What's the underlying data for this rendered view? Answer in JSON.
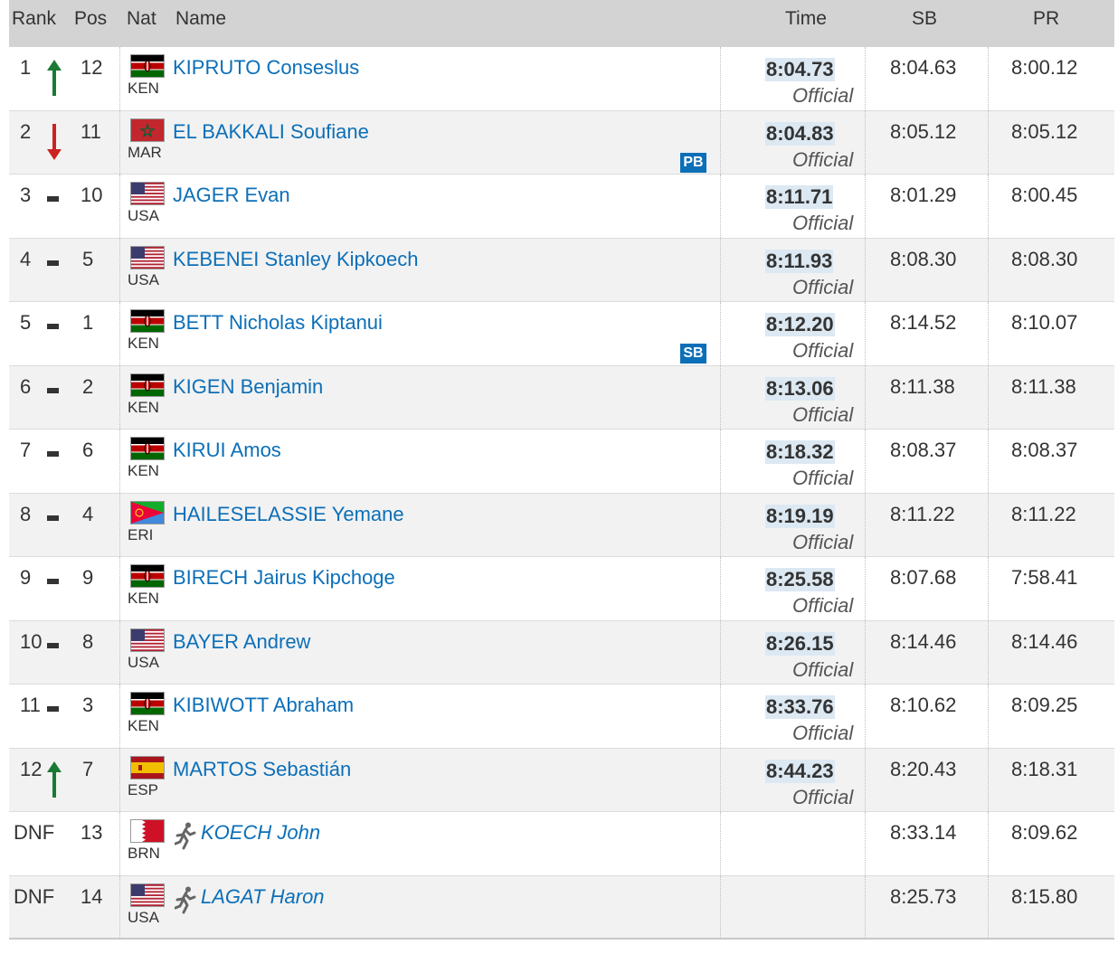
{
  "headers": {
    "rank": "Rank",
    "pos": "Pos",
    "nat": "Nat",
    "name": "Name",
    "time": "Time",
    "sb": "SB",
    "pr": "PR"
  },
  "colors": {
    "link": "#0c6fb8",
    "header_bg": "#d3d3d3",
    "row_alt_bg": "#f2f2f2",
    "time_highlight": "#dce8f2",
    "trend_up": "#1a7a35",
    "trend_down": "#cc2222"
  },
  "rows": [
    {
      "rank": "1",
      "trend": "up",
      "pos": "12",
      "nat": "KEN",
      "flag": "kenya-flag-icon",
      "name": "KIPRUTO Conseslus",
      "badge": "",
      "time": "8:04.73",
      "status": "Official",
      "sb": "8:04.63",
      "pr": "8:00.12"
    },
    {
      "rank": "2",
      "trend": "down",
      "pos": "11",
      "nat": "MAR",
      "flag": "morocco-flag-icon",
      "name": "EL BAKKALI Soufiane",
      "badge": "PB",
      "time": "8:04.83",
      "status": "Official",
      "sb": "8:05.12",
      "pr": "8:05.12"
    },
    {
      "rank": "3",
      "trend": "same",
      "pos": "10",
      "nat": "USA",
      "flag": "usa-flag-icon",
      "name": "JAGER Evan",
      "badge": "",
      "time": "8:11.71",
      "status": "Official",
      "sb": "8:01.29",
      "pr": "8:00.45"
    },
    {
      "rank": "4",
      "trend": "same",
      "pos": "5",
      "nat": "USA",
      "flag": "usa-flag-icon",
      "name": "KEBENEI Stanley Kipkoech",
      "badge": "",
      "time": "8:11.93",
      "status": "Official",
      "sb": "8:08.30",
      "pr": "8:08.30"
    },
    {
      "rank": "5",
      "trend": "same",
      "pos": "1",
      "nat": "KEN",
      "flag": "kenya-flag-icon",
      "name": "BETT Nicholas Kiptanui",
      "badge": "SB",
      "time": "8:12.20",
      "status": "Official",
      "sb": "8:14.52",
      "pr": "8:10.07"
    },
    {
      "rank": "6",
      "trend": "same",
      "pos": "2",
      "nat": "KEN",
      "flag": "kenya-flag-icon",
      "name": "KIGEN Benjamin",
      "badge": "",
      "time": "8:13.06",
      "status": "Official",
      "sb": "8:11.38",
      "pr": "8:11.38"
    },
    {
      "rank": "7",
      "trend": "same",
      "pos": "6",
      "nat": "KEN",
      "flag": "kenya-flag-icon",
      "name": "KIRUI Amos",
      "badge": "",
      "time": "8:18.32",
      "status": "Official",
      "sb": "8:08.37",
      "pr": "8:08.37"
    },
    {
      "rank": "8",
      "trend": "same",
      "pos": "4",
      "nat": "ERI",
      "flag": "eritrea-flag-icon",
      "name": "HAILESELASSIE Yemane",
      "badge": "",
      "time": "8:19.19",
      "status": "Official",
      "sb": "8:11.22",
      "pr": "8:11.22"
    },
    {
      "rank": "9",
      "trend": "same",
      "pos": "9",
      "nat": "KEN",
      "flag": "kenya-flag-icon",
      "name": "BIRECH Jairus Kipchoge",
      "badge": "",
      "time": "8:25.58",
      "status": "Official",
      "sb": "8:07.68",
      "pr": "7:58.41"
    },
    {
      "rank": "10",
      "trend": "same",
      "pos": "8",
      "nat": "USA",
      "flag": "usa-flag-icon",
      "name": "BAYER Andrew",
      "badge": "",
      "time": "8:26.15",
      "status": "Official",
      "sb": "8:14.46",
      "pr": "8:14.46"
    },
    {
      "rank": "11",
      "trend": "same",
      "pos": "3",
      "nat": "KEN",
      "flag": "kenya-flag-icon",
      "name": "KIBIWOTT Abraham",
      "badge": "",
      "time": "8:33.76",
      "status": "Official",
      "sb": "8:10.62",
      "pr": "8:09.25"
    },
    {
      "rank": "12",
      "trend": "up",
      "pos": "7",
      "nat": "ESP",
      "flag": "spain-flag-icon",
      "name": "MARTOS Sebastián",
      "badge": "",
      "time": "8:44.23",
      "status": "Official",
      "sb": "8:20.43",
      "pr": "8:18.31"
    },
    {
      "rank": "DNF",
      "trend": "none",
      "pos": "13",
      "nat": "BRN",
      "flag": "bahrain-flag-icon",
      "name": "KOECH John",
      "badge": "",
      "time": "",
      "status": "",
      "sb": "8:33.14",
      "pr": "8:09.62",
      "icon": "runner-icon"
    },
    {
      "rank": "DNF",
      "trend": "none",
      "pos": "14",
      "nat": "USA",
      "flag": "usa-flag-icon",
      "name": "LAGAT Haron",
      "badge": "",
      "time": "",
      "status": "",
      "sb": "8:25.73",
      "pr": "8:15.80",
      "icon": "runner-icon"
    }
  ]
}
